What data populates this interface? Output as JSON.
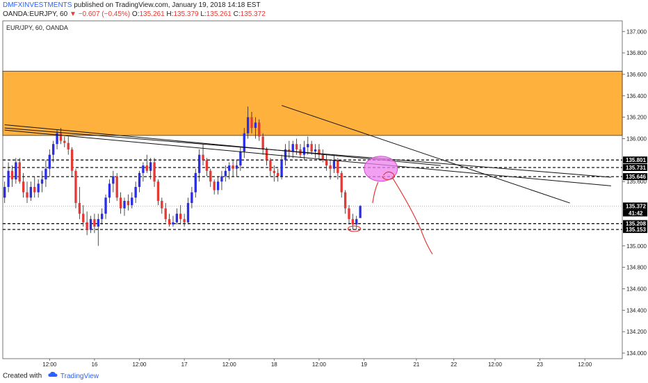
{
  "header": {
    "author": "DMFXINVESTMENTS",
    "published": " published on TradingView.com, January 19, 2018 14:18 EST",
    "symbol": "OANDA:EURJPY, 60",
    "change": "▼ −0.607 (−0.45%)",
    "o_label": " O:",
    "o_value": "135.261",
    "h_label": " H:",
    "h_value": "135.379",
    "l_label": " L:",
    "l_value": "135.261",
    "c_label": " C:",
    "c_value": "135.372"
  },
  "footer": {
    "created_with": "Created with",
    "brand": "TradingView"
  },
  "chart_data": {
    "type": "candlestick",
    "title": "EUR/JPY, 60, OANDA",
    "ylim": [
      134.0,
      137.06
    ],
    "y_ticks": [
      "137.000",
      "136.800",
      "136.600",
      "136.400",
      "136.200",
      "136.000",
      "135.600",
      "135.000",
      "134.800",
      "134.600",
      "134.400",
      "134.200",
      "134.000"
    ],
    "x_ticks": [
      {
        "label": "12:00",
        "x": 12
      },
      {
        "label": "16",
        "x": 24
      },
      {
        "label": "12:00",
        "x": 36
      },
      {
        "label": "17",
        "x": 48
      },
      {
        "label": "12:00",
        "x": 60
      },
      {
        "label": "18",
        "x": 72
      },
      {
        "label": "12:00",
        "x": 84
      },
      {
        "label": "19",
        "x": 96
      },
      {
        "label": "21",
        "x": 110
      },
      {
        "label": "22",
        "x": 120
      },
      {
        "label": "12:00",
        "x": 131
      },
      {
        "label": "23",
        "x": 143
      },
      {
        "label": "12:00",
        "x": 155
      }
    ],
    "price_labels": [
      {
        "text": "135.801",
        "value": 135.801
      },
      {
        "text": "135.731",
        "value": 135.731
      },
      {
        "text": "135.646",
        "value": 135.646
      },
      {
        "text": "135.208",
        "value": 135.208
      },
      {
        "text": "135.153",
        "value": 135.153
      }
    ],
    "current": {
      "price": "135.372",
      "value": 135.372,
      "countdown": "41:42"
    },
    "colors": {
      "up": "#2a2ee6",
      "down": "#e53935",
      "zone": "#ffb13d",
      "annotation": "#e53935",
      "highlight": "#ee82ee"
    },
    "zone": [
      136.03,
      136.63
    ],
    "candles": [
      [
        135.45,
        135.6,
        135.4,
        135.55
      ],
      [
        135.55,
        135.78,
        135.5,
        135.7
      ],
      [
        135.7,
        135.75,
        135.55,
        135.62
      ],
      [
        135.62,
        135.82,
        135.58,
        135.78
      ],
      [
        135.78,
        135.82,
        135.58,
        135.6
      ],
      [
        135.6,
        135.68,
        135.45,
        135.5
      ],
      [
        135.5,
        135.6,
        135.4,
        135.45
      ],
      [
        135.45,
        135.6,
        135.42,
        135.55
      ],
      [
        135.55,
        135.65,
        135.45,
        135.5
      ],
      [
        135.5,
        135.62,
        135.45,
        135.58
      ],
      [
        135.58,
        135.7,
        135.5,
        135.62
      ],
      [
        135.62,
        135.8,
        135.55,
        135.72
      ],
      [
        135.72,
        135.9,
        135.65,
        135.85
      ],
      [
        135.85,
        135.98,
        135.78,
        135.95
      ],
      [
        135.95,
        136.08,
        135.9,
        136.05
      ],
      [
        136.05,
        136.1,
        135.95,
        135.98
      ],
      [
        135.98,
        136.02,
        135.92,
        135.96
      ],
      [
        135.96,
        136.02,
        135.85,
        135.9
      ],
      [
        135.9,
        135.92,
        135.65,
        135.7
      ],
      [
        135.7,
        135.72,
        135.35,
        135.4
      ],
      [
        135.4,
        135.55,
        135.25,
        135.3
      ],
      [
        135.3,
        135.38,
        135.18,
        135.22
      ],
      [
        135.22,
        135.32,
        135.1,
        135.15
      ],
      [
        135.15,
        135.28,
        135.12,
        135.25
      ],
      [
        135.25,
        135.3,
        135.12,
        135.18
      ],
      [
        135.18,
        135.3,
        135.0,
        135.25
      ],
      [
        135.25,
        135.35,
        135.2,
        135.3
      ],
      [
        135.3,
        135.48,
        135.25,
        135.45
      ],
      [
        135.45,
        135.62,
        135.4,
        135.58
      ],
      [
        135.58,
        135.7,
        135.5,
        135.65
      ],
      [
        135.65,
        135.68,
        135.42,
        135.45
      ],
      [
        135.45,
        135.5,
        135.3,
        135.35
      ],
      [
        135.35,
        135.45,
        135.28,
        135.42
      ],
      [
        135.42,
        135.48,
        135.33,
        135.38
      ],
      [
        135.38,
        135.5,
        135.35,
        135.45
      ],
      [
        135.45,
        135.6,
        135.4,
        135.55
      ],
      [
        135.55,
        135.7,
        135.5,
        135.68
      ],
      [
        135.68,
        135.78,
        135.6,
        135.75
      ],
      [
        135.75,
        135.85,
        135.68,
        135.7
      ],
      [
        135.7,
        135.82,
        135.62,
        135.78
      ],
      [
        135.78,
        135.82,
        135.55,
        135.6
      ],
      [
        135.6,
        135.62,
        135.38,
        135.42
      ],
      [
        135.42,
        135.45,
        135.3,
        135.35
      ],
      [
        135.35,
        135.4,
        135.22,
        135.25
      ],
      [
        135.25,
        135.3,
        135.18,
        135.2
      ],
      [
        135.2,
        135.28,
        135.18,
        135.22
      ],
      [
        135.22,
        135.35,
        135.2,
        135.3
      ],
      [
        135.3,
        135.38,
        135.2,
        135.25
      ],
      [
        135.25,
        135.3,
        135.18,
        135.22
      ],
      [
        135.22,
        135.45,
        135.2,
        135.4
      ],
      [
        135.4,
        135.55,
        135.35,
        135.5
      ],
      [
        135.5,
        135.72,
        135.45,
        135.68
      ],
      [
        135.68,
        135.9,
        135.6,
        135.85
      ],
      [
        135.85,
        135.95,
        135.75,
        135.8
      ],
      [
        135.8,
        135.82,
        135.65,
        135.7
      ],
      [
        135.7,
        135.72,
        135.55,
        135.6
      ],
      [
        135.6,
        135.62,
        135.48,
        135.52
      ],
      [
        135.52,
        135.65,
        135.48,
        135.6
      ],
      [
        135.6,
        135.7,
        135.52,
        135.65
      ],
      [
        135.65,
        135.75,
        135.6,
        135.7
      ],
      [
        135.7,
        135.78,
        135.62,
        135.75
      ],
      [
        135.75,
        135.8,
        135.65,
        135.72
      ],
      [
        135.72,
        135.8,
        135.65,
        135.75
      ],
      [
        135.75,
        135.92,
        135.7,
        135.88
      ],
      [
        135.88,
        136.1,
        135.82,
        136.05
      ],
      [
        136.05,
        136.3,
        136.0,
        136.2
      ],
      [
        136.2,
        136.25,
        136.05,
        136.1
      ],
      [
        136.1,
        136.2,
        136.0,
        136.15
      ],
      [
        136.15,
        136.18,
        135.98,
        136.02
      ],
      [
        136.02,
        136.05,
        135.85,
        135.9
      ],
      [
        135.9,
        135.92,
        135.75,
        135.8
      ],
      [
        135.8,
        135.82,
        135.65,
        135.7
      ],
      [
        135.7,
        135.75,
        135.6,
        135.68
      ],
      [
        135.68,
        135.72,
        135.6,
        135.65
      ],
      [
        135.65,
        135.85,
        135.62,
        135.8
      ],
      [
        135.8,
        135.95,
        135.75,
        135.9
      ],
      [
        135.9,
        135.98,
        135.82,
        135.88
      ],
      [
        135.88,
        135.98,
        135.82,
        135.95
      ],
      [
        135.95,
        136.0,
        135.85,
        135.9
      ],
      [
        135.9,
        135.95,
        135.82,
        135.85
      ],
      [
        135.85,
        135.98,
        135.8,
        135.92
      ],
      [
        135.92,
        136.02,
        135.85,
        135.95
      ],
      [
        135.95,
        135.98,
        135.85,
        135.88
      ],
      [
        135.88,
        135.95,
        135.82,
        135.9
      ],
      [
        135.9,
        135.95,
        135.8,
        135.85
      ],
      [
        135.85,
        135.9,
        135.78,
        135.8
      ],
      [
        135.8,
        135.85,
        135.7,
        135.75
      ],
      [
        135.75,
        135.8,
        135.62,
        135.72
      ],
      [
        135.72,
        135.85,
        135.68,
        135.8
      ],
      [
        135.8,
        135.82,
        135.62,
        135.68
      ],
      [
        135.68,
        135.7,
        135.45,
        135.5
      ],
      [
        135.5,
        135.52,
        135.3,
        135.35
      ],
      [
        135.35,
        135.38,
        135.2,
        135.25
      ],
      [
        135.25,
        135.3,
        135.15,
        135.2
      ],
      [
        135.2,
        135.28,
        135.15,
        135.25
      ],
      [
        135.26,
        135.38,
        135.26,
        135.372
      ]
    ],
    "trendlines": [
      {
        "from": [
          0,
          136.13
        ],
        "to": [
          116.5,
          135.75
        ],
        "color": "#111"
      },
      {
        "from": [
          0,
          136.1
        ],
        "to": [
          162,
          135.64
        ],
        "color": "#111"
      },
      {
        "from": [
          0,
          136.08
        ],
        "to": [
          162,
          135.56
        ],
        "color": "#111"
      },
      {
        "from": [
          74,
          136.31
        ],
        "to": [
          151,
          135.4
        ],
        "color": "#111"
      }
    ],
    "dashed_levels": [
      135.801,
      135.731,
      135.646,
      135.208,
      135.153
    ],
    "x_range": [
      -0.5,
      165
    ]
  }
}
